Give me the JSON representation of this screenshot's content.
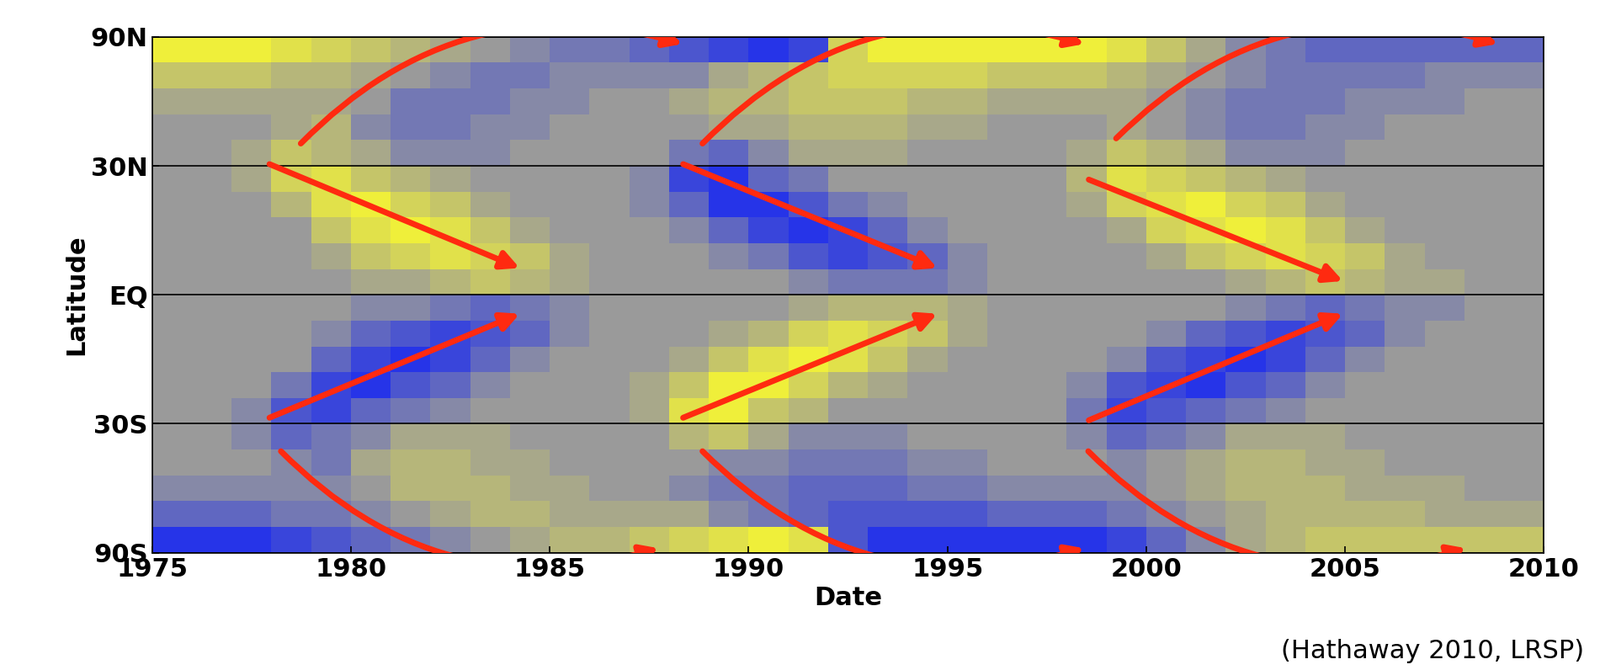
{
  "chart_data": {
    "type": "heatmap",
    "xlabel": "Date",
    "ylabel": "Latitude",
    "annotations": [
      "(Hathaway 2010, LRSP)"
    ],
    "xlim": [
      1975,
      2010
    ],
    "xticks": [
      1975,
      1980,
      1985,
      1990,
      1995,
      2000,
      2005,
      2010
    ],
    "ylim": [
      -1,
      1
    ],
    "yticks": [
      {
        "value": -1,
        "label": "90S"
      },
      {
        "value": -0.5,
        "label": "30S"
      },
      {
        "value": 0,
        "label": "EQ"
      },
      {
        "value": 0.5,
        "label": "30N"
      },
      {
        "value": 1,
        "label": "90N"
      }
    ],
    "grid": true,
    "color_range": [
      -6,
      6
    ],
    "x_edges": [
      1975,
      1976,
      1977,
      1978,
      1979,
      1980,
      1981,
      1982,
      1983,
      1984,
      1985,
      1986,
      1987,
      1988,
      1989,
      1990,
      1991,
      1992,
      1993,
      1994,
      1995,
      1996,
      1997,
      1998,
      1999,
      2000,
      2001,
      2002,
      2003,
      2004,
      2005,
      2006,
      2007,
      2008,
      2009,
      2010
    ],
    "y_edges": [
      1,
      0.9,
      0.8,
      0.7,
      0.6,
      0.5,
      0.4,
      0.3,
      0.2,
      0.1,
      0,
      -0.1,
      -0.2,
      -0.3,
      -0.4,
      -0.5,
      -0.6,
      -0.7,
      -0.8,
      -0.9,
      -1
    ],
    "cells": [
      [
        6,
        6,
        6,
        5,
        4,
        3,
        2,
        1,
        0,
        -1,
        -2,
        -2,
        -3,
        -4,
        -5,
        -6,
        -5,
        4,
        6,
        6,
        6,
        6,
        6,
        6,
        5,
        3,
        1,
        -1,
        -2,
        -3,
        -3,
        -3,
        -3,
        -3,
        -3
      ],
      [
        3,
        3,
        3,
        2,
        2,
        1,
        0,
        -1,
        -2,
        -2,
        -1,
        -1,
        -1,
        -1,
        1,
        2,
        3,
        4,
        4,
        4,
        4,
        3,
        3,
        3,
        2,
        1,
        0,
        -1,
        -2,
        -2,
        -2,
        -2,
        -1,
        -1,
        -1
      ],
      [
        1,
        1,
        1,
        1,
        1,
        0,
        -2,
        -2,
        -2,
        -1,
        -1,
        0,
        0,
        1,
        2,
        2,
        3,
        3,
        3,
        2,
        2,
        1,
        1,
        1,
        1,
        0,
        -1,
        -2,
        -2,
        -2,
        -1,
        -1,
        -1,
        0,
        0
      ],
      [
        0,
        0,
        0,
        1,
        2,
        -1,
        -2,
        -2,
        -1,
        -1,
        0,
        0,
        0,
        0,
        1,
        1,
        2,
        2,
        2,
        1,
        1,
        0,
        0,
        0,
        1,
        0,
        -1,
        -2,
        -2,
        -1,
        -1,
        0,
        0,
        0,
        0
      ],
      [
        0,
        0,
        1,
        3,
        2,
        1,
        -1,
        -1,
        -1,
        0,
        0,
        0,
        0,
        -2,
        -3,
        -1,
        1,
        1,
        1,
        0,
        0,
        0,
        0,
        1,
        3,
        2,
        1,
        -1,
        -1,
        -1,
        0,
        0,
        0,
        0,
        0
      ],
      [
        0,
        0,
        1,
        4,
        5,
        3,
        2,
        1,
        0,
        0,
        0,
        0,
        -1,
        -5,
        -6,
        -3,
        -2,
        0,
        0,
        0,
        0,
        0,
        0,
        2,
        5,
        4,
        3,
        2,
        1,
        0,
        0,
        0,
        0,
        0,
        0
      ],
      [
        0,
        0,
        0,
        2,
        5,
        6,
        4,
        3,
        1,
        0,
        0,
        0,
        -1,
        -3,
        -6,
        -6,
        -4,
        -2,
        -1,
        0,
        0,
        0,
        0,
        1,
        4,
        5,
        6,
        4,
        3,
        1,
        0,
        0,
        0,
        0,
        0
      ],
      [
        0,
        0,
        0,
        0,
        3,
        5,
        6,
        5,
        3,
        1,
        0,
        0,
        0,
        -1,
        -3,
        -5,
        -6,
        -5,
        -3,
        -1,
        0,
        0,
        0,
        0,
        1,
        4,
        5,
        6,
        5,
        3,
        1,
        0,
        0,
        0,
        0
      ],
      [
        0,
        0,
        0,
        0,
        1,
        3,
        4,
        5,
        4,
        3,
        1,
        0,
        0,
        0,
        -1,
        -2,
        -4,
        -5,
        -4,
        -3,
        -1,
        0,
        0,
        0,
        0,
        1,
        3,
        4,
        5,
        4,
        3,
        1,
        0,
        0,
        0
      ],
      [
        0,
        0,
        0,
        0,
        0,
        1,
        1,
        2,
        3,
        2,
        1,
        0,
        0,
        0,
        0,
        0,
        -1,
        -2,
        -2,
        -2,
        -1,
        0,
        0,
        0,
        0,
        0,
        0,
        1,
        2,
        3,
        2,
        1,
        1,
        0,
        0
      ],
      [
        0,
        0,
        0,
        0,
        0,
        -1,
        -1,
        -2,
        -3,
        -2,
        -1,
        0,
        0,
        0,
        0,
        0,
        1,
        2,
        2,
        2,
        1,
        0,
        0,
        0,
        0,
        0,
        0,
        -1,
        -2,
        -3,
        -2,
        -1,
        -1,
        0,
        0
      ],
      [
        0,
        0,
        0,
        0,
        -1,
        -3,
        -4,
        -5,
        -4,
        -3,
        -1,
        0,
        0,
        0,
        1,
        2,
        4,
        5,
        4,
        3,
        1,
        0,
        0,
        0,
        0,
        -1,
        -3,
        -4,
        -5,
        -4,
        -3,
        -1,
        0,
        0,
        0
      ],
      [
        0,
        0,
        0,
        0,
        -3,
        -5,
        -6,
        -5,
        -3,
        -1,
        0,
        0,
        0,
        1,
        3,
        5,
        6,
        5,
        3,
        1,
        0,
        0,
        0,
        0,
        -1,
        -4,
        -5,
        -6,
        -5,
        -3,
        -1,
        0,
        0,
        0,
        0
      ],
      [
        0,
        0,
        0,
        -2,
        -5,
        -6,
        -4,
        -3,
        -1,
        0,
        0,
        0,
        1,
        3,
        6,
        6,
        4,
        2,
        1,
        0,
        0,
        0,
        0,
        -1,
        -4,
        -5,
        -6,
        -4,
        -3,
        -1,
        0,
        0,
        0,
        0,
        0
      ],
      [
        0,
        0,
        -1,
        -4,
        -5,
        -3,
        -2,
        -1,
        0,
        0,
        0,
        0,
        1,
        5,
        6,
        3,
        2,
        0,
        0,
        0,
        0,
        0,
        0,
        -2,
        -5,
        -4,
        -3,
        -2,
        -1,
        0,
        0,
        0,
        0,
        0,
        0
      ],
      [
        0,
        0,
        -1,
        -3,
        -2,
        -1,
        1,
        1,
        1,
        0,
        0,
        0,
        0,
        2,
        3,
        1,
        -1,
        -1,
        -1,
        0,
        0,
        0,
        0,
        -1,
        -3,
        -2,
        -1,
        1,
        1,
        1,
        0,
        0,
        0,
        0,
        0
      ],
      [
        0,
        0,
        0,
        -1,
        -2,
        1,
        2,
        2,
        1,
        1,
        0,
        0,
        0,
        0,
        -1,
        -1,
        -2,
        -2,
        -2,
        -1,
        -1,
        0,
        0,
        0,
        -1,
        0,
        1,
        2,
        2,
        1,
        1,
        0,
        0,
        0,
        0
      ],
      [
        -1,
        -1,
        -1,
        -1,
        -1,
        0,
        2,
        2,
        2,
        1,
        1,
        0,
        0,
        -1,
        -2,
        -2,
        -3,
        -3,
        -3,
        -2,
        -2,
        -1,
        -1,
        -1,
        -1,
        0,
        1,
        2,
        2,
        2,
        1,
        1,
        1,
        0,
        0
      ],
      [
        -3,
        -3,
        -3,
        -2,
        -2,
        -1,
        0,
        1,
        2,
        2,
        1,
        1,
        1,
        1,
        -1,
        -2,
        -3,
        -4,
        -4,
        -4,
        -4,
        -3,
        -3,
        -3,
        -2,
        -1,
        0,
        1,
        2,
        2,
        2,
        2,
        1,
        1,
        1
      ],
      [
        -6,
        -6,
        -6,
        -5,
        -4,
        -3,
        -2,
        -1,
        0,
        1,
        2,
        2,
        3,
        4,
        5,
        6,
        5,
        -4,
        -6,
        -6,
        -6,
        -6,
        -6,
        -6,
        -5,
        -3,
        -1,
        1,
        2,
        3,
        3,
        3,
        3,
        3,
        3
      ]
    ],
    "arrows": {
      "color": "#ff2a10",
      "from_to": [
        [
          1977.9,
          0.51,
          1984.3,
          0.1
        ],
        [
          1988.3,
          0.51,
          1994.8,
          0.1
        ],
        [
          1998.5,
          0.45,
          2005.0,
          0.05
        ],
        [
          1977.9,
          -0.48,
          1984.3,
          -0.07
        ],
        [
          1988.3,
          -0.48,
          1994.8,
          -0.07
        ],
        [
          1998.5,
          -0.49,
          2005.0,
          -0.07
        ],
        [
          1978.7,
          0.58,
          1988.4,
          0.97
        ],
        [
          1988.8,
          0.58,
          1998.5,
          0.97
        ],
        [
          1999.2,
          0.6,
          2008.9,
          0.97
        ],
        [
          1978.2,
          -0.6,
          1987.8,
          -0.98
        ],
        [
          1988.8,
          -0.6,
          1998.5,
          -0.98
        ],
        [
          1998.5,
          -0.6,
          2008.1,
          -0.98
        ]
      ]
    }
  }
}
